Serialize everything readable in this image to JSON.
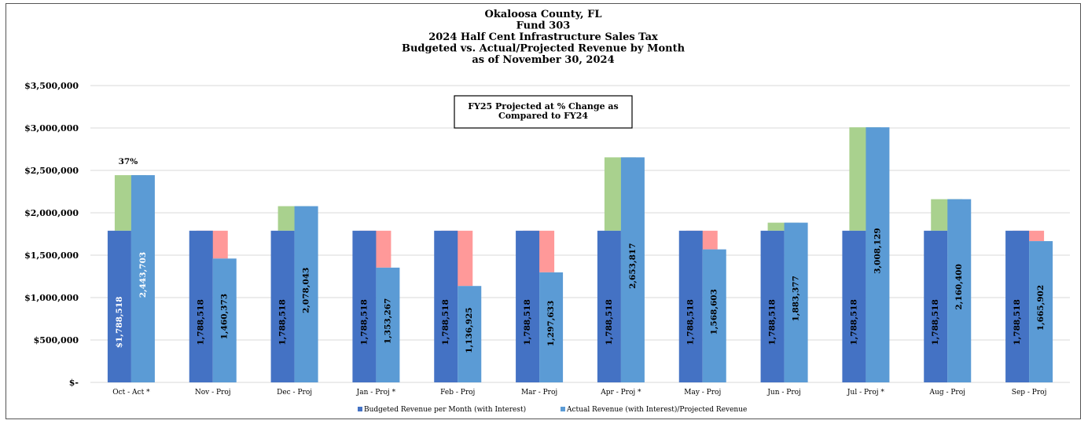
{
  "chart_data": {
    "type": "bar",
    "title_lines": [
      "Okaloosa County, FL",
      "Fund 303",
      "2024 Half Cent Infrastructure Sales Tax",
      "Budgeted vs. Actual/Projected Revenue by Month",
      "as of November 30, 2024"
    ],
    "categories": [
      "Oct - Act  *",
      "Nov - Proj",
      "Dec - Proj",
      "Jan - Proj  *",
      "Feb - Proj",
      "Mar - Proj",
      "Apr - Proj *",
      "May - Proj",
      "Jun - Proj",
      "Jul - Proj  *",
      "Aug - Proj",
      "Sep - Proj"
    ],
    "series": [
      {
        "name": "Budgeted Revenue per Month (with Interest)",
        "color": "#4472c4",
        "values": [
          1788518,
          1788518,
          1788518,
          1788518,
          1788518,
          1788518,
          1788518,
          1788518,
          1788518,
          1788518,
          1788518,
          1788518
        ],
        "labels": [
          "$1,788,518",
          "1,788,518",
          "1,788,518",
          "1,788,518",
          "1,788,518",
          "1,788,518",
          "1,788,518",
          "1,788,518",
          "1,788,518",
          "1,788,518",
          "1,788,518",
          "1,788,518"
        ]
      },
      {
        "name": "Actual Revenue (with Interest)/Projected Revenue",
        "color": "#5b9bd5",
        "values": [
          2443703,
          1460373,
          2078043,
          1353267,
          1136925,
          1297633,
          2653817,
          1568603,
          1883377,
          3008129,
          2160400,
          1665902
        ],
        "labels": [
          "2,443,703",
          "1,460,373",
          "2,078,043",
          "1,353,267",
          "1,136,925",
          "1,297,633",
          "2,653,817",
          "1,568,603",
          "1,883,377",
          "3,008,129",
          "2,160,400",
          "1,665,902"
        ]
      }
    ],
    "difference_colors": {
      "increase": "#a9d18e",
      "decrease": "#ff9999"
    },
    "y_ticks": [
      "$-",
      "$500,000",
      "$1,000,000",
      "$1,500,000",
      "$2,000,000",
      "$2,500,000",
      "$3,000,000",
      "$3,500,000"
    ],
    "ylim": [
      0,
      3500000
    ],
    "grid": true,
    "legend_position": "bottom",
    "annotations": {
      "note_lines": [
        "FY25 Projected at % Change as",
        "Compared to FY24"
      ],
      "oct_percent": "37%"
    }
  }
}
